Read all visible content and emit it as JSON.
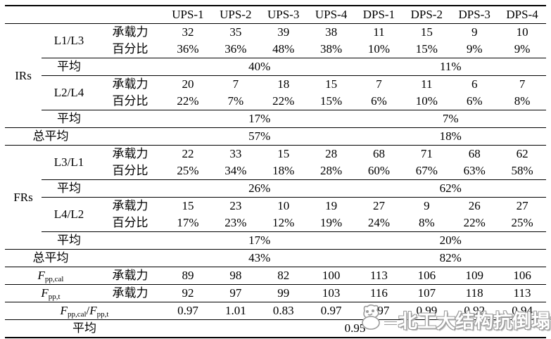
{
  "watermark": {
    "text": "北工大结构抗倒塌课题组",
    "mascot": "cartoon-mascot-icon"
  },
  "table": {
    "type": "table",
    "columns": [
      "",
      "",
      "",
      "UPS-1",
      "UPS-2",
      "UPS-3",
      "UPS-4",
      "DPS-1",
      "DPS-2",
      "DPS-3",
      "DPS-4"
    ],
    "rows": [
      {
        "header": true,
        "rule": false,
        "cells": [
          {
            "t": "",
            "colspan": 3,
            "name": "header-stub"
          },
          {
            "t": "UPS-1",
            "name": "column-header"
          },
          {
            "t": "UPS-2",
            "name": "column-header"
          },
          {
            "t": "UPS-3",
            "name": "column-header"
          },
          {
            "t": "UPS-4",
            "name": "column-header"
          },
          {
            "t": "DPS-1",
            "name": "column-header"
          },
          {
            "t": "DPS-2",
            "name": "column-header"
          },
          {
            "t": "DPS-3",
            "name": "column-header"
          },
          {
            "t": "DPS-4",
            "name": "column-header"
          }
        ]
      },
      {
        "rule": true,
        "cells": [
          {
            "t": "IRs",
            "rowspan": 6,
            "name": "group-label-irs"
          },
          {
            "t": "L1/L3",
            "rowspan": 2,
            "name": "subgroup-label"
          },
          {
            "t": "承载力",
            "name": "metric-label"
          },
          {
            "t": "32"
          },
          {
            "t": "35"
          },
          {
            "t": "39"
          },
          {
            "t": "38"
          },
          {
            "t": "11"
          },
          {
            "t": "15"
          },
          {
            "t": "9"
          },
          {
            "t": "10"
          }
        ]
      },
      {
        "rule": false,
        "cells": [
          {
            "t": "百分比",
            "name": "metric-label"
          },
          {
            "t": "36%"
          },
          {
            "t": "36%"
          },
          {
            "t": "48%"
          },
          {
            "t": "38%"
          },
          {
            "t": "10%"
          },
          {
            "t": "15%"
          },
          {
            "t": "9%"
          },
          {
            "t": "9%"
          }
        ]
      },
      {
        "rule": true,
        "cells": [
          {
            "t": "平均",
            "name": "avg-label"
          },
          {
            "t": ""
          },
          {
            "t": "40%",
            "colspan": 4,
            "name": "avg-value"
          },
          {
            "t": "11%",
            "colspan": 4,
            "name": "avg-value"
          }
        ]
      },
      {
        "rule": true,
        "cells": [
          {
            "t": "L2/L4",
            "rowspan": 2,
            "name": "subgroup-label"
          },
          {
            "t": "承载力",
            "name": "metric-label"
          },
          {
            "t": "20"
          },
          {
            "t": "7"
          },
          {
            "t": "18"
          },
          {
            "t": "15"
          },
          {
            "t": "7"
          },
          {
            "t": "11"
          },
          {
            "t": "6"
          },
          {
            "t": "7"
          }
        ]
      },
      {
        "rule": false,
        "cells": [
          {
            "t": "百分比",
            "name": "metric-label"
          },
          {
            "t": "22%"
          },
          {
            "t": "7%"
          },
          {
            "t": "22%"
          },
          {
            "t": "15%"
          },
          {
            "t": "6%"
          },
          {
            "t": "10%"
          },
          {
            "t": "6%"
          },
          {
            "t": "8%"
          }
        ]
      },
      {
        "rule": true,
        "cells": [
          {
            "t": "平均",
            "name": "avg-label"
          },
          {
            "t": ""
          },
          {
            "t": "17%",
            "colspan": 4,
            "name": "avg-value"
          },
          {
            "t": "7%",
            "colspan": 4,
            "name": "avg-value"
          }
        ]
      },
      {
        "rule": true,
        "cells": [
          {
            "t": "总平均",
            "colspan": 2,
            "name": "total-avg-label"
          },
          {
            "t": ""
          },
          {
            "t": "57%",
            "colspan": 4,
            "name": "total-avg-value"
          },
          {
            "t": "18%",
            "colspan": 4,
            "name": "total-avg-value"
          }
        ]
      },
      {
        "rule": true,
        "cells": [
          {
            "t": "FRs",
            "rowspan": 6,
            "name": "group-label-frs"
          },
          {
            "t": "L3/L1",
            "rowspan": 2,
            "name": "subgroup-label"
          },
          {
            "t": "承载力",
            "name": "metric-label"
          },
          {
            "t": "22"
          },
          {
            "t": "33"
          },
          {
            "t": "15"
          },
          {
            "t": "28"
          },
          {
            "t": "68"
          },
          {
            "t": "71"
          },
          {
            "t": "68"
          },
          {
            "t": "62"
          }
        ]
      },
      {
        "rule": false,
        "cells": [
          {
            "t": "百分比",
            "name": "metric-label"
          },
          {
            "t": "25%"
          },
          {
            "t": "34%"
          },
          {
            "t": "18%"
          },
          {
            "t": "28%"
          },
          {
            "t": "60%"
          },
          {
            "t": "67%"
          },
          {
            "t": "63%"
          },
          {
            "t": "58%"
          }
        ]
      },
      {
        "rule": true,
        "cells": [
          {
            "t": "平均",
            "name": "avg-label"
          },
          {
            "t": ""
          },
          {
            "t": "26%",
            "colspan": 4,
            "name": "avg-value"
          },
          {
            "t": "62%",
            "colspan": 4,
            "name": "avg-value"
          }
        ]
      },
      {
        "rule": true,
        "cells": [
          {
            "t": "L4/L2",
            "rowspan": 2,
            "name": "subgroup-label"
          },
          {
            "t": "承载力",
            "name": "metric-label"
          },
          {
            "t": "15"
          },
          {
            "t": "23"
          },
          {
            "t": "10"
          },
          {
            "t": "19"
          },
          {
            "t": "27"
          },
          {
            "t": "9"
          },
          {
            "t": "26"
          },
          {
            "t": "27"
          }
        ]
      },
      {
        "rule": false,
        "cells": [
          {
            "t": "百分比",
            "name": "metric-label"
          },
          {
            "t": "17%"
          },
          {
            "t": "23%"
          },
          {
            "t": "12%"
          },
          {
            "t": "19%"
          },
          {
            "t": "24%"
          },
          {
            "t": "8%"
          },
          {
            "t": "22%"
          },
          {
            "t": "25%"
          }
        ]
      },
      {
        "rule": true,
        "cells": [
          {
            "t": "平均",
            "name": "avg-label"
          },
          {
            "t": ""
          },
          {
            "t": "17%",
            "colspan": 4,
            "name": "avg-value"
          },
          {
            "t": "20%",
            "colspan": 4,
            "name": "avg-value"
          }
        ]
      },
      {
        "rule": true,
        "cells": [
          {
            "t": "总平均",
            "colspan": 2,
            "name": "total-avg-label"
          },
          {
            "t": ""
          },
          {
            "t": "43%",
            "colspan": 4,
            "name": "total-avg-value"
          },
          {
            "t": "82%",
            "colspan": 4,
            "name": "total-avg-value"
          }
        ]
      },
      {
        "rule": true,
        "cells": [
          {
            "parts": [
              {
                "t": "F",
                "i": true
              },
              {
                "t": "pp,cal",
                "sub": true
              }
            ],
            "colspan": 2,
            "name": "f-pp-cal-label"
          },
          {
            "t": "承载力",
            "name": "metric-label"
          },
          {
            "t": "89"
          },
          {
            "t": "98"
          },
          {
            "t": "82"
          },
          {
            "t": "100"
          },
          {
            "t": "113"
          },
          {
            "t": "106"
          },
          {
            "t": "109"
          },
          {
            "t": "106"
          }
        ]
      },
      {
        "rule": true,
        "cells": [
          {
            "parts": [
              {
                "t": "F",
                "i": true
              },
              {
                "t": "pp,t",
                "sub": true
              }
            ],
            "colspan": 2,
            "name": "f-pp-t-label"
          },
          {
            "t": "承载力",
            "name": "metric-label"
          },
          {
            "t": "92"
          },
          {
            "t": "97"
          },
          {
            "t": "99"
          },
          {
            "t": "103"
          },
          {
            "t": "116"
          },
          {
            "t": "107"
          },
          {
            "t": "118"
          },
          {
            "t": "113"
          }
        ]
      },
      {
        "rule": true,
        "cells": [
          {
            "parts": [
              {
                "t": "F",
                "i": true
              },
              {
                "t": "pp,cal",
                "sub": true
              },
              {
                "t": "/"
              },
              {
                "t": "F",
                "i": true
              },
              {
                "t": "pp,t",
                "sub": true
              }
            ],
            "colspan": 3,
            "name": "ratio-label"
          },
          {
            "t": "0.97"
          },
          {
            "t": "1.01"
          },
          {
            "t": "0.83"
          },
          {
            "t": "0.97"
          },
          {
            "t": "0.97"
          },
          {
            "t": "0.99"
          },
          {
            "t": "0.92"
          },
          {
            "t": "0.94"
          }
        ]
      },
      {
        "rule": true,
        "cells": [
          {
            "t": "平均",
            "colspan": 3,
            "name": "avg-label"
          },
          {
            "t": "0.95",
            "colspan": 8,
            "name": "overall-ratio-avg"
          }
        ]
      }
    ]
  }
}
